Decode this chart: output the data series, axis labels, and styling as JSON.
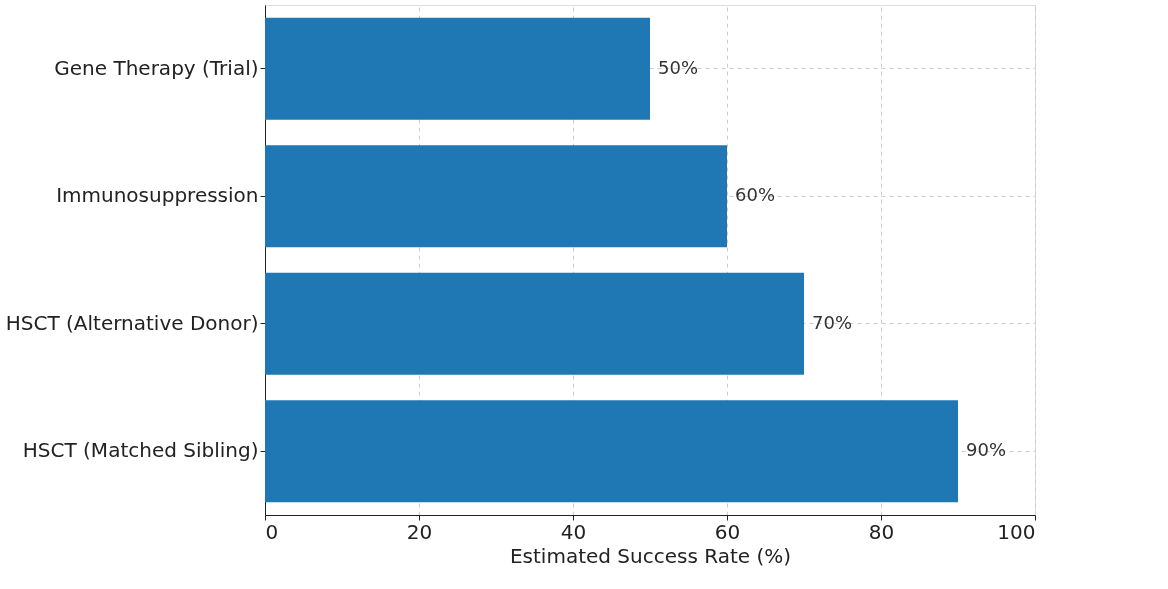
{
  "chart_data": {
    "type": "bar",
    "orientation": "horizontal",
    "categories": [
      "Gene Therapy (Trial)",
      "Immunosuppression",
      "HSCT (Alternative Donor)",
      "HSCT (Matched Sibling)"
    ],
    "values": [
      50,
      60,
      70,
      90
    ],
    "color": "#1f77b4",
    "value_labels": [
      "50%",
      "60%",
      "70%",
      "90%"
    ],
    "xlabel": "Estimated Success Rate (%)",
    "xlim": [
      0,
      100
    ],
    "xticks": [
      0,
      20,
      40,
      60,
      80,
      100
    ],
    "grid": true
  }
}
